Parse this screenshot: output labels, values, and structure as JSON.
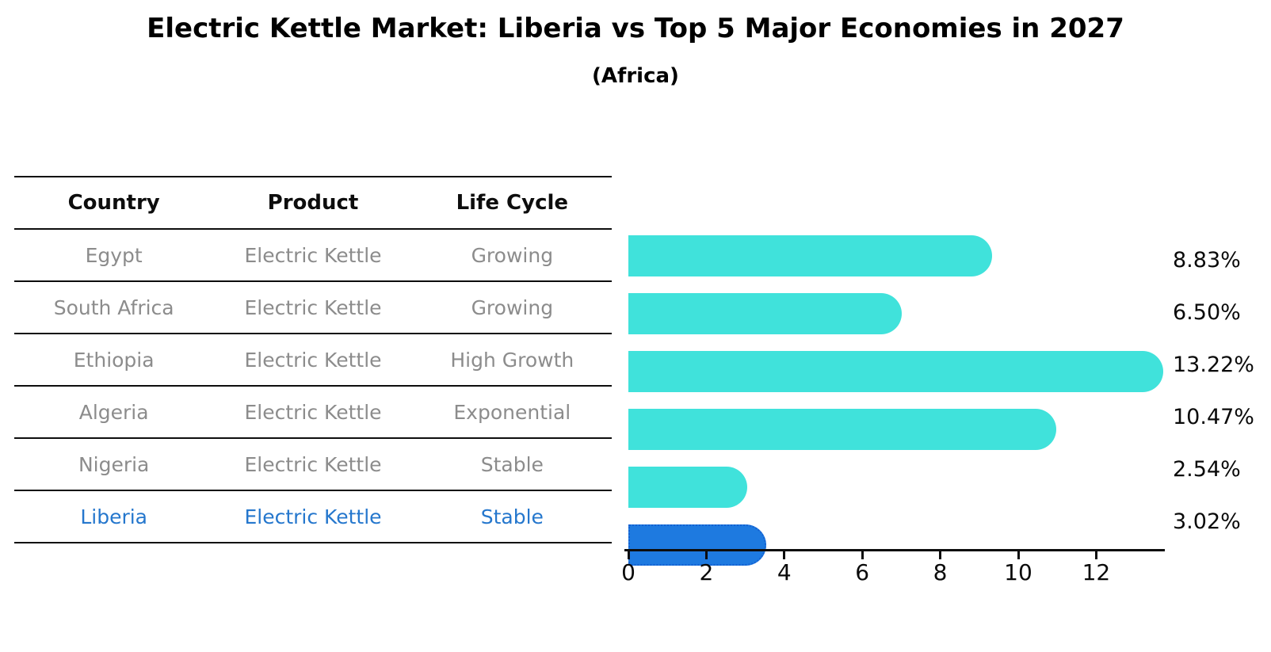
{
  "title": "Electric Kettle Market: Liberia vs Top 5 Major Economies in 2027",
  "subtitle": "(Africa)",
  "table": {
    "headers": [
      "Country",
      "Product",
      "Life Cycle"
    ],
    "rows": [
      {
        "country": "Egypt",
        "product": "Electric Kettle",
        "life_cycle": "Growing",
        "highlighted": false
      },
      {
        "country": "South Africa",
        "product": "Electric Kettle",
        "life_cycle": "Growing",
        "highlighted": false
      },
      {
        "country": "Ethiopia",
        "product": "Electric Kettle",
        "life_cycle": "High Growth",
        "highlighted": false
      },
      {
        "country": "Algeria",
        "product": "Electric Kettle",
        "life_cycle": "Exponential",
        "highlighted": false
      },
      {
        "country": "Nigeria",
        "product": "Electric Kettle",
        "life_cycle": "Stable",
        "highlighted": false
      },
      {
        "country": "Liberia",
        "product": "Electric Kettle",
        "life_cycle": "Stable",
        "highlighted": true
      }
    ]
  },
  "chart_data": {
    "type": "bar",
    "orientation": "horizontal",
    "categories": [
      "Egypt",
      "South Africa",
      "Ethiopia",
      "Algeria",
      "Nigeria",
      "Liberia"
    ],
    "values": [
      8.83,
      6.5,
      13.22,
      10.47,
      2.54,
      3.02
    ],
    "value_labels": [
      "8.83%",
      "6.50%",
      "13.22%",
      "10.47%",
      "2.54%",
      "3.02%"
    ],
    "highlight_index": 5,
    "x_ticks": [
      0,
      2,
      4,
      6,
      8,
      10,
      12
    ],
    "xlim": [
      0,
      13.76
    ],
    "grid": false,
    "legend": false,
    "title": "Electric Kettle Market: Liberia vs Top 5 Major Economies in 2027",
    "subtitle": "(Africa)",
    "xlabel": "",
    "ylabel": ""
  },
  "colors": {
    "bar": "#40E2DB",
    "highlight_bar": "#1E7AE0",
    "highlight_bar_border": "#1460D2",
    "muted_text": "#8c8c8c",
    "highlight_text": "#2577CD",
    "axis": "#0d0d0d"
  }
}
